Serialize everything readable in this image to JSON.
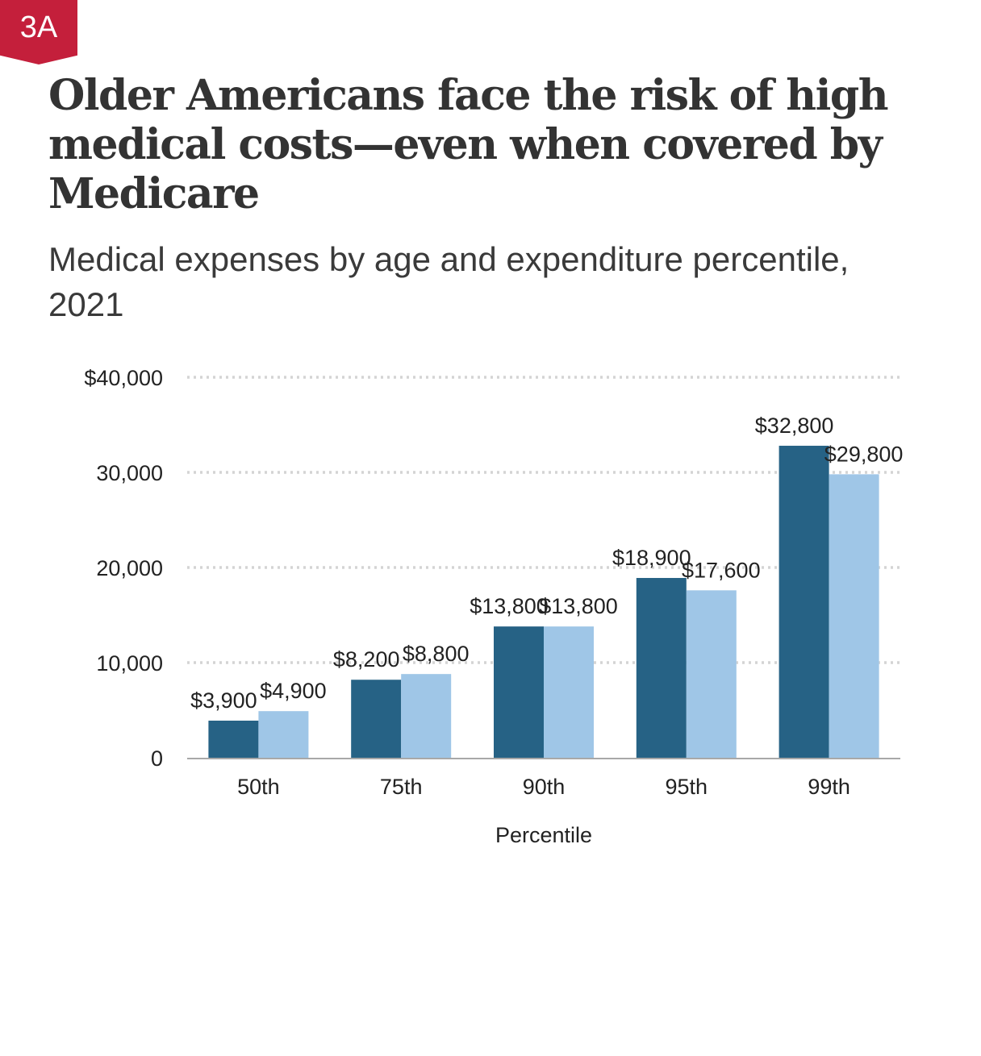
{
  "badge": {
    "label": "3A",
    "color": "#c41f3b"
  },
  "header": {
    "title": "Older Americans face the risk of high medical costs—even when covered by Medicare",
    "subtitle": "Medical expenses by age and expenditure percentile, 2021"
  },
  "chart_data": {
    "type": "bar",
    "categories": [
      "50th",
      "75th",
      "90th",
      "95th",
      "99th"
    ],
    "xlabel": "Percentile",
    "ylabel": "",
    "ylim": [
      0,
      40000
    ],
    "yticks": [
      0,
      10000,
      20000,
      30000,
      40000
    ],
    "ytick_labels": [
      "0",
      "10,000",
      "20,000",
      "30,000",
      "$40,000"
    ],
    "grid": true,
    "legend": "none",
    "series": [
      {
        "color": "#266285",
        "values": [
          3900,
          8200,
          13800,
          18900,
          32800
        ],
        "labels": [
          "$3,900",
          "$8,200",
          "$13,800",
          "$18,900",
          "$32,800"
        ]
      },
      {
        "color": "#9fc6e7",
        "values": [
          4900,
          8800,
          13800,
          17600,
          29800
        ],
        "labels": [
          "$4,900",
          "$8,800",
          "$13,800",
          "$17,600",
          "$29,800"
        ]
      }
    ]
  }
}
